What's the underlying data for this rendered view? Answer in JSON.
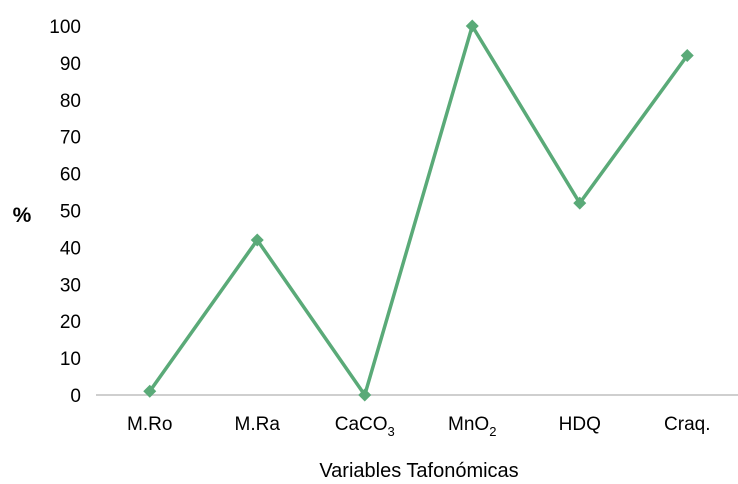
{
  "chart_data": {
    "type": "line",
    "categories": [
      {
        "label": "M.Ro",
        "main": "M.Ro",
        "sub": ""
      },
      {
        "label": "M.Ra",
        "main": "M.Ra",
        "sub": ""
      },
      {
        "label": "CaCO3",
        "main": "CaCO",
        "sub": "3"
      },
      {
        "label": "MnO2",
        "main": "MnO",
        "sub": "2"
      },
      {
        "label": "HDQ",
        "main": "HDQ",
        "sub": ""
      },
      {
        "label": "Craq.",
        "main": "Craq.",
        "sub": ""
      }
    ],
    "series": [
      {
        "values": [
          1,
          42,
          0,
          100,
          52,
          92
        ],
        "color": "#5aaa78",
        "marker": "diamond"
      }
    ],
    "title": "",
    "xlabel": "Variables Tafonómicas",
    "ylabel": "%",
    "ylim": [
      0,
      100
    ],
    "yticks": [
      0,
      10,
      20,
      30,
      40,
      50,
      60,
      70,
      80,
      90,
      100
    ],
    "grid": false,
    "legend": "none"
  }
}
